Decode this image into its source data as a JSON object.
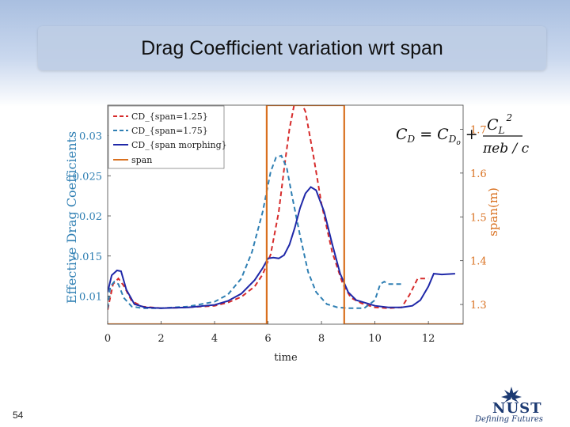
{
  "slide": {
    "title": "Drag  Coefficient variation wrt span",
    "page_number": "54"
  },
  "logo": {
    "name": "NUST",
    "tagline": "Defining Futures"
  },
  "colors": {
    "span1_25": "#d62b2b",
    "span1_75": "#2f7fb3",
    "morphing": "#1f28a8",
    "span": "#d9701f"
  },
  "chart_data": {
    "type": "line",
    "title": "",
    "xlabel": "time",
    "ylabel": "Effective Drag Coefficients",
    "ylabel_right": "span(m)",
    "xlim": [
      0,
      13.3
    ],
    "ylim": [
      0.0065,
      0.0338
    ],
    "ylim_right": [
      1.255,
      1.755
    ],
    "x_ticks": [
      "0",
      "2",
      "4",
      "6",
      "8",
      "10",
      "12"
    ],
    "y_ticks": [
      "0.01",
      "0.015",
      "0.02",
      "0.025",
      "0.03"
    ],
    "y_ticks_right": [
      "1.3",
      "1.4",
      "1.5",
      "1.6",
      "1.7"
    ],
    "equation": "C_D = C_Do + C_L^2 / (π e b / c)",
    "legend": [
      "CD_{span=1.25}",
      "CD_{span=1.75}",
      "CD_{span morphing}",
      "span"
    ],
    "series": [
      {
        "name": "CD_{span=1.25}",
        "axis": "left",
        "style": "dashed",
        "x": [
          0,
          0.2,
          0.4,
          0.6,
          0.9,
          1.3,
          2,
          3,
          4,
          4.5,
          5,
          5.5,
          5.8,
          6.1,
          6.4,
          6.6,
          6.8,
          7.0,
          7.2,
          7.4,
          7.7,
          8.0,
          8.4,
          8.8,
          9.1,
          9.5,
          10.0,
          10.5,
          11.0,
          11.3,
          11.6,
          12.0
        ],
        "y": [
          0.0083,
          0.0115,
          0.0122,
          0.0113,
          0.0094,
          0.0087,
          0.0085,
          0.0086,
          0.0088,
          0.0092,
          0.0099,
          0.0112,
          0.0127,
          0.0152,
          0.0205,
          0.0258,
          0.0308,
          0.0342,
          0.0345,
          0.033,
          0.0275,
          0.0215,
          0.0155,
          0.0115,
          0.0098,
          0.0091,
          0.0086,
          0.0085,
          0.0086,
          0.0102,
          0.0122,
          0.0122
        ]
      },
      {
        "name": "CD_{span=1.75}",
        "axis": "left",
        "style": "dashed",
        "x": [
          0,
          0.1,
          0.25,
          0.4,
          0.6,
          0.9,
          1.3,
          2,
          3,
          4,
          4.5,
          5,
          5.4,
          5.8,
          6.1,
          6.3,
          6.5,
          6.7,
          6.9,
          7.2,
          7.5,
          7.8,
          8.2,
          8.6,
          9.0,
          9.6,
          10.0,
          10.2,
          10.35,
          10.5,
          11.0
        ],
        "y": [
          0.0085,
          0.0112,
          0.0118,
          0.0115,
          0.0098,
          0.0087,
          0.0085,
          0.0085,
          0.0087,
          0.0093,
          0.0102,
          0.0122,
          0.0155,
          0.0205,
          0.0255,
          0.0273,
          0.0275,
          0.026,
          0.0225,
          0.0175,
          0.013,
          0.0105,
          0.009,
          0.0086,
          0.0085,
          0.0085,
          0.0095,
          0.0115,
          0.0118,
          0.0115,
          0.0115
        ]
      },
      {
        "name": "CD_{span morphing}",
        "axis": "left",
        "style": "solid",
        "x": [
          0,
          0.15,
          0.35,
          0.5,
          0.7,
          1.0,
          1.4,
          2,
          3,
          4,
          4.5,
          5,
          5.5,
          5.8,
          6.0,
          6.2,
          6.4,
          6.6,
          6.8,
          7.0,
          7.2,
          7.4,
          7.6,
          7.8,
          8.1,
          8.4,
          8.7,
          9.0,
          9.3,
          9.7,
          10.0,
          10.5,
          11.0,
          11.4,
          11.7,
          12.0,
          12.2,
          12.5,
          13.0
        ],
        "y": [
          0.0105,
          0.0126,
          0.0132,
          0.0131,
          0.0108,
          0.009,
          0.0086,
          0.0085,
          0.0086,
          0.0089,
          0.0094,
          0.0103,
          0.012,
          0.0135,
          0.0147,
          0.0148,
          0.0147,
          0.0151,
          0.0164,
          0.0185,
          0.021,
          0.0228,
          0.0236,
          0.0232,
          0.0205,
          0.0165,
          0.0128,
          0.0105,
          0.0095,
          0.0091,
          0.0088,
          0.0086,
          0.0086,
          0.0088,
          0.0095,
          0.0112,
          0.0128,
          0.0127,
          0.0128
        ]
      },
      {
        "name": "span",
        "axis": "right",
        "style": "solid",
        "x": [
          0,
          5.95,
          5.95,
          8.85,
          8.85,
          13.3
        ],
        "y": [
          1.255,
          1.255,
          1.755,
          1.755,
          1.255,
          1.255
        ]
      }
    ]
  }
}
